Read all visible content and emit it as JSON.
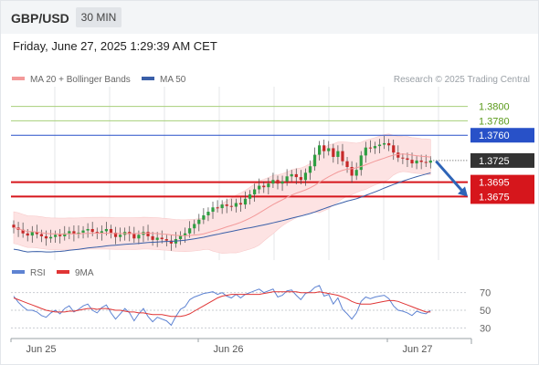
{
  "header": {
    "symbol": "GBP/USD",
    "timeframe": "30 MIN",
    "datetime": "Friday, June 27, 2025 1:29:39 AM CET",
    "credit": "Research © 2025 Trading Central"
  },
  "colors": {
    "bb_fill": "#fde3e3",
    "ma20": "#f39a9a",
    "ma50": "#3a5fa8",
    "up": "#2e9e42",
    "down": "#c62828",
    "resistance_green": "#a7cf7a",
    "pivot_blue": "#2851c8",
    "support_red": "#d6161c",
    "rsi": "#5e83d2",
    "rsi_ma": "#e03535",
    "grid": "#e4e7ea"
  },
  "chart_data": [
    {
      "type": "candlestick",
      "legend": [
        {
          "label": "MA 20 + Bollinger Bands",
          "color": "#f39a9a"
        },
        {
          "label": "MA 50",
          "color": "#3a5fa8"
        }
      ],
      "y_range": [
        1.3587,
        1.3821
      ],
      "price_tag": {
        "value": 1.3725,
        "label": "1.3725"
      },
      "levels": [
        {
          "value": 1.38,
          "label": "1.3800",
          "kind": "resistance"
        },
        {
          "value": 1.378,
          "label": "1.3780",
          "kind": "resistance"
        },
        {
          "value": 1.376,
          "label": "1.3760",
          "kind": "pivot"
        },
        {
          "value": 1.3695,
          "label": "1.3695",
          "kind": "support"
        },
        {
          "value": 1.3675,
          "label": "1.3675",
          "kind": "support"
        }
      ],
      "forecast_arrow": {
        "from": 1.3724,
        "to": 1.3675,
        "direction": "down"
      },
      "x_ticks": [
        "Jun 25",
        "Jun 26",
        "Jun 27"
      ],
      "closes": [
        1.3632,
        1.3629,
        1.3624,
        1.3621,
        1.3626,
        1.3623,
        1.362,
        1.3617,
        1.3619,
        1.3622,
        1.362,
        1.3624,
        1.3627,
        1.3623,
        1.3625,
        1.3628,
        1.363,
        1.3626,
        1.3624,
        1.3627,
        1.363,
        1.3625,
        1.3619,
        1.3622,
        1.3626,
        1.3623,
        1.3617,
        1.3622,
        1.3626,
        1.362,
        1.3615,
        1.3618,
        1.3616,
        1.3614,
        1.361,
        1.3616,
        1.3621,
        1.3624,
        1.3631,
        1.3637,
        1.3643,
        1.3649,
        1.3654,
        1.366,
        1.3659,
        1.3664,
        1.3662,
        1.3661,
        1.3666,
        1.3664,
        1.3672,
        1.3678,
        1.3685,
        1.369,
        1.3688,
        1.3693,
        1.3698,
        1.3693,
        1.3696,
        1.3703,
        1.3706,
        1.3702,
        1.3698,
        1.3708,
        1.3717,
        1.3733,
        1.3746,
        1.3738,
        1.3742,
        1.373,
        1.3738,
        1.3724,
        1.3716,
        1.3704,
        1.3712,
        1.3732,
        1.3743,
        1.3742,
        1.3745,
        1.3747,
        1.3749,
        1.3746,
        1.3736,
        1.3729,
        1.3728,
        1.3726,
        1.3721,
        1.3725,
        1.3723,
        1.3722,
        1.3725
      ]
    },
    {
      "type": "line",
      "legend": [
        {
          "label": "RSI",
          "color": "#5e83d2"
        },
        {
          "label": "9MA",
          "color": "#e03535"
        }
      ],
      "y_range": [
        20,
        80
      ],
      "y_ticks": [
        70,
        50,
        30
      ],
      "series": [
        {
          "name": "RSI",
          "values": [
            66,
            59,
            54,
            50,
            50,
            48,
            44,
            42,
            47,
            50,
            46,
            52,
            55,
            48,
            51,
            55,
            57,
            50,
            47,
            53,
            56,
            47,
            40,
            46,
            52,
            47,
            38,
            46,
            52,
            43,
            37,
            42,
            40,
            38,
            33,
            43,
            51,
            54,
            62,
            65,
            67,
            69,
            70,
            71,
            68,
            70,
            66,
            64,
            68,
            64,
            68,
            70,
            72,
            74,
            70,
            72,
            74,
            65,
            67,
            72,
            73,
            67,
            62,
            69,
            71,
            76,
            78,
            66,
            68,
            57,
            64,
            51,
            46,
            40,
            47,
            60,
            65,
            63,
            65,
            66,
            67,
            63,
            55,
            50,
            49,
            47,
            44,
            49,
            47,
            46,
            50
          ]
        },
        {
          "name": "9MA",
          "values": [
            64,
            62,
            60,
            58,
            56,
            54,
            52,
            50,
            49,
            48,
            48,
            48,
            49,
            49,
            50,
            51,
            52,
            52,
            51,
            52,
            52,
            51,
            50,
            50,
            49,
            48,
            48,
            47,
            47,
            46,
            45,
            45,
            45,
            44,
            43,
            43,
            43,
            44,
            46,
            49,
            52,
            55,
            58,
            61,
            64,
            66,
            67,
            68,
            68,
            68,
            68,
            68,
            68,
            68,
            69,
            70,
            71,
            71,
            71,
            71,
            71,
            71,
            70,
            70,
            70,
            70,
            71,
            70,
            69,
            68,
            67,
            65,
            63,
            60,
            58,
            57,
            57,
            57,
            58,
            59,
            60,
            61,
            61,
            60,
            58,
            56,
            54,
            52,
            50,
            48,
            48
          ]
        }
      ]
    }
  ]
}
